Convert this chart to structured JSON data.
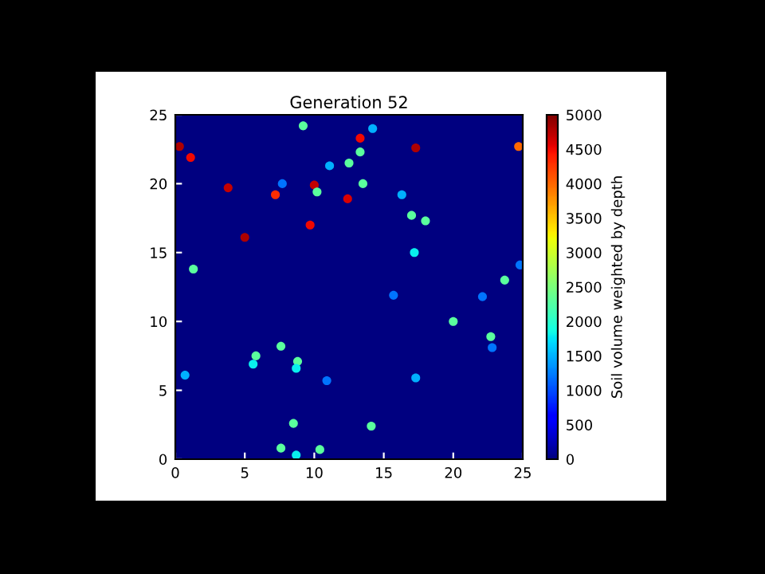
{
  "chart_data": {
    "type": "scatter",
    "title": "Generation 52",
    "clabel": "Soil volume weighted by depth",
    "x": [
      0.3,
      1.1,
      3.8,
      7.2,
      12.4,
      9.7,
      5.0,
      13.3,
      17.3,
      24.7,
      10.0,
      1.3,
      9.2,
      7.7,
      10.2,
      11.1,
      12.5,
      13.3,
      13.5,
      14.2,
      16.3,
      17.0,
      18.0,
      17.2,
      23.7,
      24.8,
      0.7,
      5.8,
      5.6,
      7.6,
      8.8,
      8.7,
      10.9,
      8.5,
      7.6,
      8.7,
      10.4,
      15.7,
      22.1,
      20.0,
      22.7,
      22.8,
      17.3,
      14.1
    ],
    "values": [
      22.7,
      21.9,
      19.7,
      19.2,
      18.9,
      17.0,
      16.1,
      23.3,
      22.6,
      22.7,
      19.9,
      13.8,
      24.2,
      20.0,
      19.4,
      21.3,
      21.5,
      22.3,
      20.0,
      24.0,
      19.2,
      17.7,
      17.3,
      15.0,
      13.0,
      14.1,
      6.1,
      7.5,
      6.9,
      8.2,
      7.1,
      6.6,
      5.7,
      2.6,
      0.8,
      0.3,
      0.7,
      11.9,
      11.8,
      10.0,
      8.9,
      8.1,
      5.9,
      2.4
    ],
    "cvalues": [
      4800,
      4500,
      4700,
      4300,
      4600,
      4500,
      4800,
      4500,
      4800,
      4000,
      4700,
      2300,
      2300,
      1200,
      2300,
      1500,
      2300,
      2300,
      2300,
      1500,
      1500,
      2300,
      2300,
      1800,
      2300,
      1200,
      1500,
      2300,
      1800,
      2300,
      2300,
      1800,
      1200,
      2300,
      2300,
      1800,
      2300,
      1200,
      1200,
      2300,
      2300,
      1200,
      1500,
      2300
    ],
    "marker": "circle",
    "xlim": [
      0,
      25
    ],
    "ylim": [
      0,
      25
    ],
    "xticks": [
      0,
      5,
      10,
      15,
      20,
      25
    ],
    "yticks": [
      0,
      5,
      10,
      15,
      20,
      25
    ],
    "clim": [
      0,
      5000
    ],
    "cticks": [
      0,
      500,
      1000,
      1500,
      2000,
      2500,
      3000,
      3500,
      4000,
      4500,
      5000
    ]
  }
}
